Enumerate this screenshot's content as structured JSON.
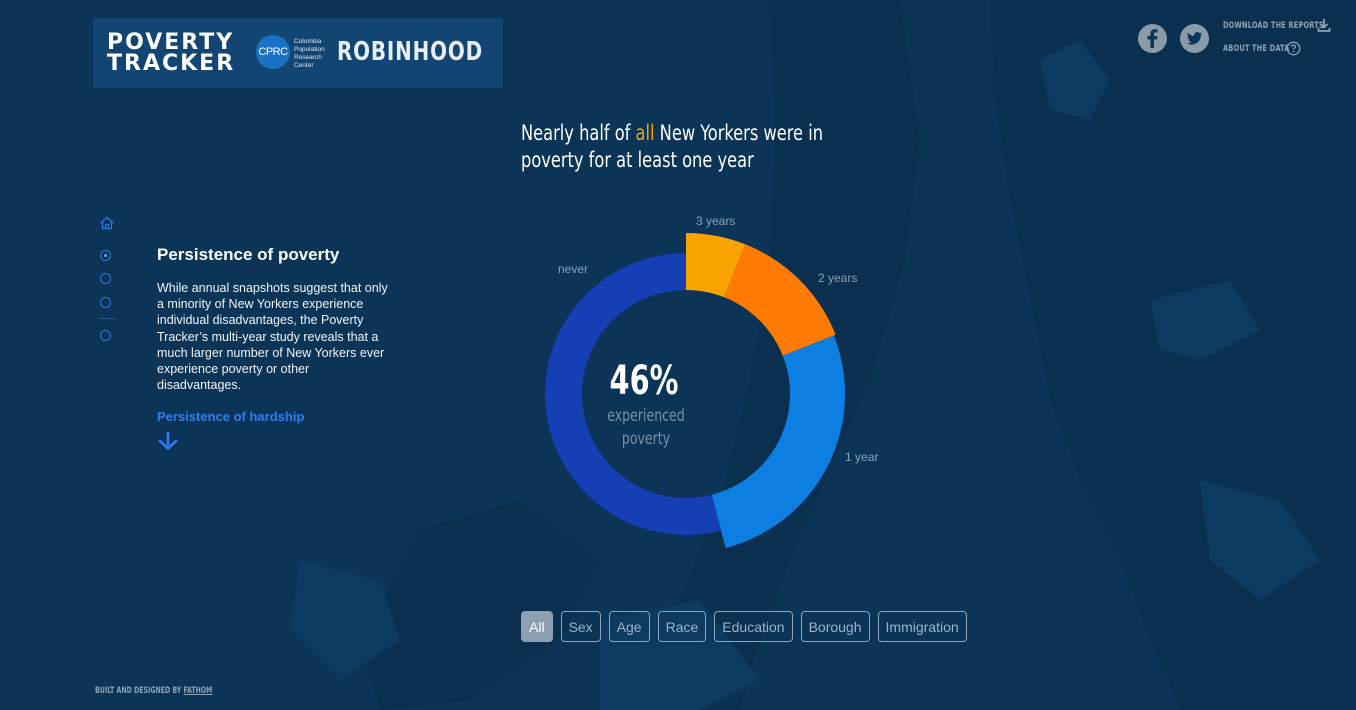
{
  "header": {
    "logo_line1": "POVERTY",
    "logo_line2": "TRACKER",
    "cprc_mark": "CPRC",
    "cprc_text": "Columbia Population Research Center",
    "robinhood": "ROBINHOOD"
  },
  "top_links": {
    "download": "DOWNLOAD THE REPORTS",
    "about": "ABOUT THE DATA"
  },
  "section": {
    "title": "Persistence of poverty",
    "body": "While annual snapshots suggest that only a minority of New Yorkers experience individual disadvantages, the Poverty Tracker’s multi-year study reveals that a much larger number of New Yorkers ever experience poverty or other disadvantages.",
    "next_link": "Persistence of hardship"
  },
  "headline": {
    "part1": "Nearly half of ",
    "highlight": "all",
    "part2": " New Yorkers were in poverty for at least one year"
  },
  "center": {
    "value": "46%",
    "label_line1": "experienced",
    "label_line2": "poverty"
  },
  "chart_data": {
    "type": "pie",
    "categories": [
      "3 years",
      "2 years",
      "1 year",
      "never"
    ],
    "values": [
      6,
      13,
      27,
      54
    ],
    "colors": [
      "#f9a300",
      "#ff7a00",
      "#0d7ee2",
      "#173fb5"
    ]
  },
  "filters": [
    "All",
    "Sex",
    "Age",
    "Race",
    "Education",
    "Borough",
    "Immigration"
  ],
  "active_filter": "All",
  "footer": {
    "prefix": "BUILT AND DESIGNED BY ",
    "link": "FATHOM"
  },
  "colors": {
    "background": "#0b3457",
    "accent": "#f5a200",
    "link": "#2f7ef0"
  }
}
